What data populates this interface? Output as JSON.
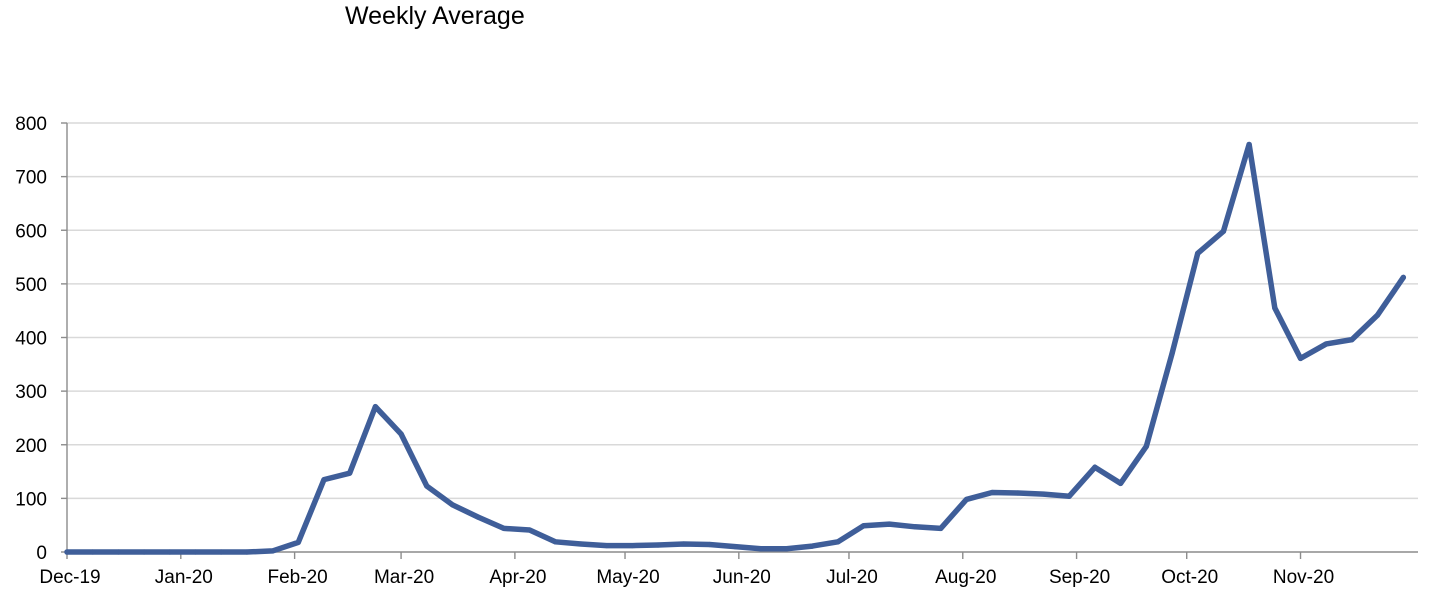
{
  "chart_data": {
    "type": "line",
    "title": "Weekly Average",
    "xlabel": "",
    "ylabel": "",
    "ylim": [
      0,
      800
    ],
    "yticks": [
      0,
      100,
      200,
      300,
      400,
      500,
      600,
      700,
      800
    ],
    "xlim": [
      "2019-12-01",
      "2020-12-03"
    ],
    "xticks": [
      {
        "date": "2019-12-01",
        "label": "Dec-19"
      },
      {
        "date": "2020-01-01",
        "label": "Jan-20"
      },
      {
        "date": "2020-02-01",
        "label": "Feb-20"
      },
      {
        "date": "2020-03-01",
        "label": "Mar-20"
      },
      {
        "date": "2020-04-01",
        "label": "Apr-20"
      },
      {
        "date": "2020-05-01",
        "label": "May-20"
      },
      {
        "date": "2020-06-01",
        "label": "Jun-20"
      },
      {
        "date": "2020-07-01",
        "label": "Jul-20"
      },
      {
        "date": "2020-08-01",
        "label": "Aug-20"
      },
      {
        "date": "2020-09-01",
        "label": "Sep-20"
      },
      {
        "date": "2020-10-01",
        "label": "Oct-20"
      },
      {
        "date": "2020-11-01",
        "label": "Nov-20"
      }
    ],
    "grid": true,
    "legend": "none",
    "colors": {
      "series": "#3f5e99",
      "grid": "#d9d9d9",
      "axis": "#8c8c8c"
    },
    "series": [
      {
        "name": "",
        "points": [
          {
            "x": "2019-12-01",
            "y": 0
          },
          {
            "x": "2019-12-08",
            "y": 0
          },
          {
            "x": "2019-12-15",
            "y": 0
          },
          {
            "x": "2019-12-22",
            "y": 0
          },
          {
            "x": "2019-12-29",
            "y": 0
          },
          {
            "x": "2020-01-05",
            "y": 0
          },
          {
            "x": "2020-01-12",
            "y": 0
          },
          {
            "x": "2020-01-19",
            "y": 0
          },
          {
            "x": "2020-01-26",
            "y": 2
          },
          {
            "x": "2020-02-02",
            "y": 18
          },
          {
            "x": "2020-02-09",
            "y": 135
          },
          {
            "x": "2020-02-16",
            "y": 147
          },
          {
            "x": "2020-02-23",
            "y": 271
          },
          {
            "x": "2020-03-01",
            "y": 220
          },
          {
            "x": "2020-03-08",
            "y": 123
          },
          {
            "x": "2020-03-15",
            "y": 88
          },
          {
            "x": "2020-03-22",
            "y": 65
          },
          {
            "x": "2020-03-29",
            "y": 44
          },
          {
            "x": "2020-04-05",
            "y": 41
          },
          {
            "x": "2020-04-12",
            "y": 19
          },
          {
            "x": "2020-04-19",
            "y": 15
          },
          {
            "x": "2020-04-26",
            "y": 12
          },
          {
            "x": "2020-05-03",
            "y": 12
          },
          {
            "x": "2020-05-10",
            "y": 13
          },
          {
            "x": "2020-05-17",
            "y": 15
          },
          {
            "x": "2020-05-24",
            "y": 14
          },
          {
            "x": "2020-05-31",
            "y": 10
          },
          {
            "x": "2020-06-07",
            "y": 6
          },
          {
            "x": "2020-06-14",
            "y": 6
          },
          {
            "x": "2020-06-21",
            "y": 11
          },
          {
            "x": "2020-06-28",
            "y": 19
          },
          {
            "x": "2020-07-05",
            "y": 49
          },
          {
            "x": "2020-07-12",
            "y": 52
          },
          {
            "x": "2020-07-19",
            "y": 47
          },
          {
            "x": "2020-07-26",
            "y": 44
          },
          {
            "x": "2020-08-02",
            "y": 98
          },
          {
            "x": "2020-08-09",
            "y": 111
          },
          {
            "x": "2020-08-16",
            "y": 110
          },
          {
            "x": "2020-08-23",
            "y": 108
          },
          {
            "x": "2020-08-30",
            "y": 104
          },
          {
            "x": "2020-09-06",
            "y": 158
          },
          {
            "x": "2020-09-13",
            "y": 128
          },
          {
            "x": "2020-09-20",
            "y": 197
          },
          {
            "x": "2020-09-27",
            "y": 370
          },
          {
            "x": "2020-10-04",
            "y": 557
          },
          {
            "x": "2020-10-11",
            "y": 598
          },
          {
            "x": "2020-10-18",
            "y": 760
          },
          {
            "x": "2020-10-25",
            "y": 455
          },
          {
            "x": "2020-11-01",
            "y": 361
          },
          {
            "x": "2020-11-08",
            "y": 388
          },
          {
            "x": "2020-11-15",
            "y": 396
          },
          {
            "x": "2020-11-22",
            "y": 442
          },
          {
            "x": "2020-11-29",
            "y": 512
          }
        ]
      }
    ]
  }
}
